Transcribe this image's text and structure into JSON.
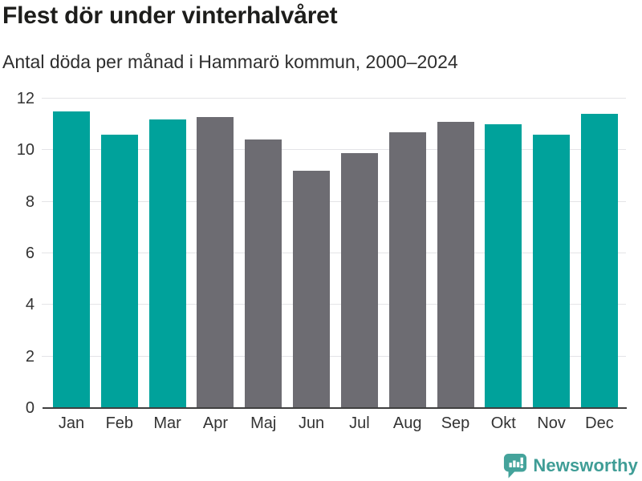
{
  "header": {
    "title": "Flest dör under vinterhalvåret",
    "subtitle": "Antal döda per månad i Hammarö kommun, 2000–2024"
  },
  "chart_data": {
    "type": "bar",
    "title": "Flest dör under vinterhalvåret",
    "subtitle": "Antal döda per månad i Hammarö kommun, 2000–2024",
    "categories": [
      "Jan",
      "Feb",
      "Mar",
      "Apr",
      "Maj",
      "Jun",
      "Jul",
      "Aug",
      "Sep",
      "Okt",
      "Nov",
      "Dec"
    ],
    "values": [
      11.5,
      10.6,
      11.2,
      11.3,
      10.4,
      9.2,
      9.9,
      10.7,
      11.1,
      11.0,
      10.6,
      11.4
    ],
    "bar_colors": [
      "teal",
      "teal",
      "teal",
      "gray",
      "gray",
      "gray",
      "gray",
      "gray",
      "gray",
      "teal",
      "teal",
      "teal"
    ],
    "xlabel": "",
    "ylabel": "",
    "ylim": [
      0,
      12
    ],
    "yticks": [
      0,
      2,
      4,
      6,
      8,
      10,
      12
    ],
    "grid": true,
    "legend": false
  },
  "colors": {
    "teal": "#00a29b",
    "gray": "#6d6c72",
    "gridline": "#e4e4e7",
    "axis_line": "#3f3f3f",
    "tick_label": "#333333",
    "title": "#1d1d1b",
    "subtitle": "#2e2e2e",
    "brand": "#3f9d96",
    "brand_mark": "#44a39b"
  },
  "footer": {
    "brand": "Newsworthy"
  }
}
